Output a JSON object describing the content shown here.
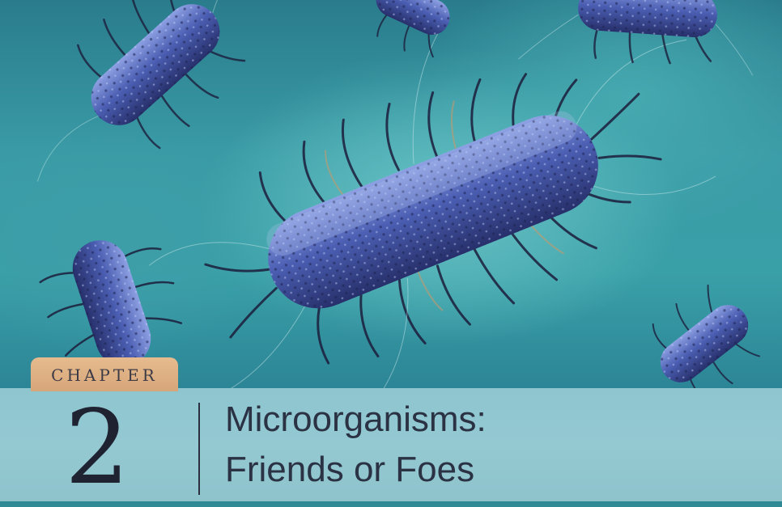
{
  "chapter": {
    "label": "CHAPTER",
    "number": "2",
    "title_line_1": "Microorganisms:",
    "title_line_2": "Friends or Foes"
  },
  "colors": {
    "background_teal": "#3aa0a8",
    "bacteria_blue": "#4a5fb0",
    "chapter_tag": "#dcae80",
    "banner": "#90c6cf",
    "text_dark": "#2a3244"
  },
  "image": {
    "subject": "rod-shaped bacteria with flagella"
  }
}
